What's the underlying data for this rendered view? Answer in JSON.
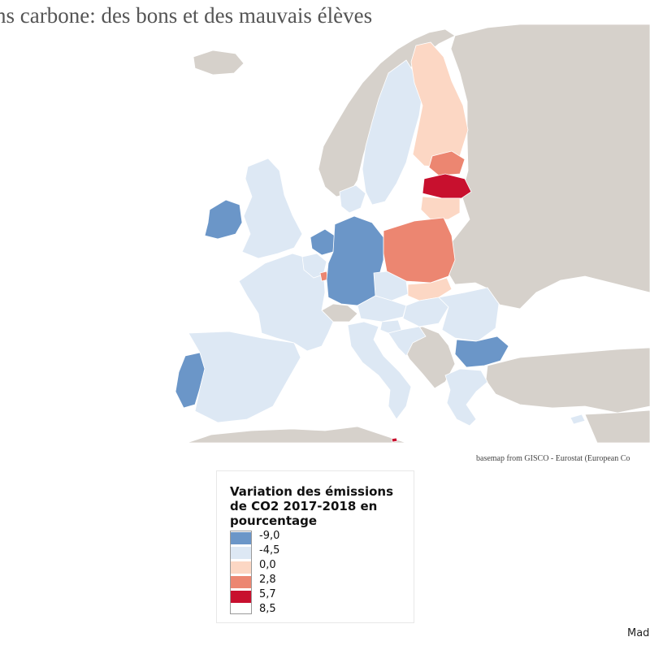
{
  "title": "ns carbone: des bons et des mauvais élèves",
  "basemap_credit": "basemap from GISCO - Eurostat (European Co",
  "source_text": "Mad",
  "legend": {
    "title": "Variation des émissions de CO2 2017-2018 en pourcentage",
    "classes": [
      {
        "label": "-9,0",
        "color": "#6b96c8"
      },
      {
        "label": "-4,5",
        "color": "#dde8f4"
      },
      {
        "label": "0,0",
        "color": "#fcd7c4"
      },
      {
        "label": "2,8",
        "color": "#ec8671"
      },
      {
        "label": "5,7",
        "color": "#c8102e"
      },
      {
        "label": "8,5",
        "color": ""
      }
    ]
  },
  "colors": {
    "non_eu_land": "#d6d1cb",
    "eu_strong_decrease": "#6b96c8",
    "eu_decrease": "#dde8f4",
    "eu_slight_increase": "#fcd7c4",
    "eu_increase": "#ec8671",
    "eu_strong_increase": "#c8102e"
  },
  "countries": [
    {
      "name": "Ireland",
      "cls": 0
    },
    {
      "name": "United Kingdom",
      "cls": 1
    },
    {
      "name": "Portugal",
      "cls": 0
    },
    {
      "name": "Spain",
      "cls": 1
    },
    {
      "name": "France",
      "cls": 1
    },
    {
      "name": "Belgium",
      "cls": 1
    },
    {
      "name": "Netherlands",
      "cls": 0
    },
    {
      "name": "Luxembourg",
      "cls": 3
    },
    {
      "name": "Germany",
      "cls": 0
    },
    {
      "name": "Denmark",
      "cls": 1
    },
    {
      "name": "Sweden",
      "cls": 1
    },
    {
      "name": "Finland",
      "cls": 2
    },
    {
      "name": "Estonia",
      "cls": 3
    },
    {
      "name": "Latvia",
      "cls": 4
    },
    {
      "name": "Lithuania",
      "cls": 2
    },
    {
      "name": "Poland",
      "cls": 3
    },
    {
      "name": "Czechia",
      "cls": 1
    },
    {
      "name": "Slovakia",
      "cls": 2
    },
    {
      "name": "Austria",
      "cls": 1
    },
    {
      "name": "Hungary",
      "cls": 1
    },
    {
      "name": "Italy",
      "cls": 1
    },
    {
      "name": "Slovenia",
      "cls": 1
    },
    {
      "name": "Croatia",
      "cls": 1
    },
    {
      "name": "Romania",
      "cls": 1
    },
    {
      "name": "Bulgaria",
      "cls": 0
    },
    {
      "name": "Greece",
      "cls": 1
    },
    {
      "name": "Cyprus",
      "cls": 1
    },
    {
      "name": "Malta",
      "cls": 4
    }
  ]
}
